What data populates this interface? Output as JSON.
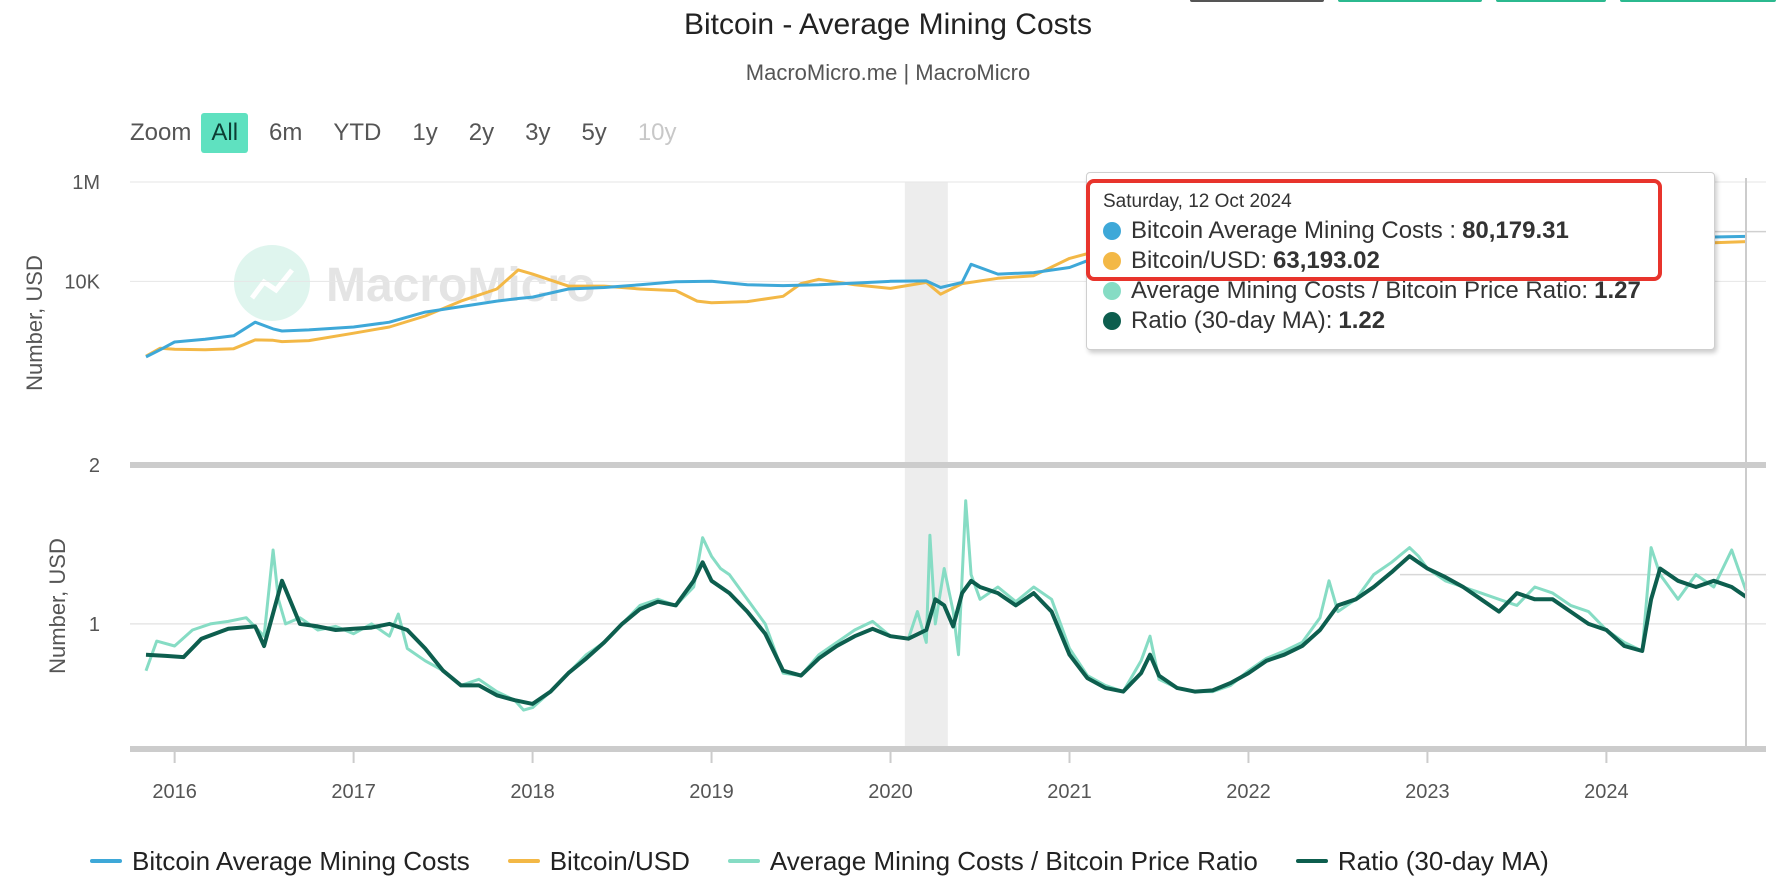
{
  "header": {
    "title": "Bitcoin - Average Mining Costs",
    "subtitle": "MacroMicro.me | MacroMicro"
  },
  "zoom": {
    "label": "Zoom",
    "buttons": [
      "All",
      "6m",
      "YTD",
      "1y",
      "2y",
      "3y",
      "5y",
      "10y"
    ],
    "active": "All",
    "disabled": [
      "10y"
    ]
  },
  "watermark": {
    "text": "MacroMicro"
  },
  "tooltip": {
    "date": "Saturday, 12 Oct 2024",
    "rows": [
      {
        "label": "Bitcoin Average Mining Costs : ",
        "value": "80,179.31"
      },
      {
        "label": "Bitcoin/USD: ",
        "value": "63,193.02"
      },
      {
        "label": "Average Mining Costs / Bitcoin Price Ratio: ",
        "value": "1.27"
      },
      {
        "label": "Ratio (30-day MA): ",
        "value": "1.22"
      }
    ]
  },
  "legend": [
    {
      "label": "Bitcoin Average Mining Costs"
    },
    {
      "label": "Bitcoin/USD"
    },
    {
      "label": "Average Mining Costs / Bitcoin Price Ratio"
    },
    {
      "label": "Ratio (30-day MA)"
    }
  ],
  "colors": {
    "mining_cost": "#3ea8d8",
    "btc_usd": "#f3b846",
    "ratio": "#86dcc4",
    "ratio_ma": "#0d5e4e",
    "shading": "#ededed",
    "header_buttons": [
      "#555555",
      "#2bb98f",
      "#2bb98f",
      "#2bb98f"
    ]
  },
  "chart_data": [
    {
      "type": "line",
      "title": "Bitcoin - Average Mining Costs",
      "ylabel": "Number, USD",
      "yscale": "log",
      "ylim": [
        2,
        1000000
      ],
      "yticks": [
        {
          "value": 2,
          "label": "2"
        },
        {
          "value": 10000,
          "label": "10K"
        },
        {
          "value": 1000000,
          "label": "1M"
        }
      ],
      "xlim": [
        2015.84,
        2024.78
      ],
      "xticks": [
        2016,
        2017,
        2018,
        2019,
        2020,
        2021,
        2022,
        2023,
        2024
      ],
      "shaded_period": [
        2020.08,
        2020.32
      ],
      "series": [
        {
          "name": "Bitcoin Average Mining Costs",
          "x": [
            2015.84,
            2015.92,
            2016.0,
            2016.17,
            2016.33,
            2016.45,
            2016.55,
            2016.6,
            2016.75,
            2017.0,
            2017.2,
            2017.4,
            2017.6,
            2017.8,
            2017.92,
            2018.0,
            2018.2,
            2018.4,
            2018.6,
            2018.8,
            2019.0,
            2019.2,
            2019.4,
            2019.6,
            2019.8,
            2020.0,
            2020.2,
            2020.28,
            2020.4,
            2020.45,
            2020.6,
            2020.8,
            2021.0,
            2021.1,
            2021.3,
            2021.4,
            2021.6,
            2021.8,
            2022.0,
            2022.3,
            2022.5,
            2022.8,
            2023.0,
            2023.2,
            2023.5,
            2023.8,
            2024.0,
            2024.2,
            2024.4,
            2024.6,
            2024.78
          ],
          "y": [
            300,
            420,
            600,
            680,
            800,
            1500,
            1100,
            1000,
            1050,
            1200,
            1500,
            2400,
            3100,
            4000,
            4500,
            4800,
            7000,
            7500,
            8500,
            9800,
            10000,
            8500,
            8200,
            8500,
            9200,
            10000,
            10200,
            7500,
            9500,
            22000,
            14000,
            15000,
            19000,
            26000,
            48000,
            55000,
            45000,
            60000,
            55000,
            35000,
            27000,
            25000,
            28000,
            35000,
            38000,
            50000,
            60000,
            70000,
            75000,
            78000,
            80179
          ]
        },
        {
          "name": "Bitcoin/USD",
          "x": [
            2015.84,
            2015.92,
            2016.0,
            2016.17,
            2016.33,
            2016.45,
            2016.55,
            2016.6,
            2016.75,
            2017.0,
            2017.2,
            2017.4,
            2017.6,
            2017.8,
            2017.92,
            2018.0,
            2018.2,
            2018.4,
            2018.6,
            2018.8,
            2018.92,
            2019.0,
            2019.2,
            2019.4,
            2019.5,
            2019.6,
            2019.8,
            2020.0,
            2020.2,
            2020.28,
            2020.4,
            2020.6,
            2020.8,
            2021.0,
            2021.2,
            2021.3,
            2021.45,
            2021.6,
            2021.85,
            2022.0,
            2022.2,
            2022.45,
            2022.6,
            2022.9,
            2023.0,
            2023.2,
            2023.5,
            2023.8,
            2024.0,
            2024.2,
            2024.4,
            2024.6,
            2024.78
          ],
          "y": [
            310,
            450,
            430,
            420,
            440,
            660,
            650,
            610,
            640,
            900,
            1200,
            2000,
            4000,
            7000,
            17000,
            14000,
            8000,
            8000,
            7000,
            6500,
            4000,
            3700,
            3900,
            5000,
            9000,
            11000,
            8500,
            7200,
            9500,
            5500,
            9000,
            11500,
            13000,
            29000,
            45000,
            60000,
            40000,
            35000,
            60000,
            47000,
            38000,
            20000,
            22000,
            17000,
            17000,
            28000,
            30000,
            35000,
            43000,
            62000,
            66000,
            60000,
            63193
          ]
        }
      ]
    },
    {
      "type": "line",
      "ylabel": "Number, USD",
      "yticks": [
        {
          "value": 1,
          "label": "1"
        }
      ],
      "xlim": [
        2015.84,
        2024.78
      ],
      "ylim": [
        0,
        2.25
      ],
      "series": [
        {
          "name": "Average Mining Costs / Bitcoin Price Ratio",
          "x": [
            2015.84,
            2015.9,
            2016.0,
            2016.1,
            2016.2,
            2016.3,
            2016.4,
            2016.5,
            2016.55,
            2016.58,
            2016.62,
            2016.7,
            2016.8,
            2016.9,
            2017.0,
            2017.1,
            2017.2,
            2017.25,
            2017.3,
            2017.4,
            2017.5,
            2017.6,
            2017.7,
            2017.8,
            2017.9,
            2017.95,
            2018.0,
            2018.1,
            2018.2,
            2018.3,
            2018.4,
            2018.5,
            2018.6,
            2018.7,
            2018.8,
            2018.9,
            2018.95,
            2019.0,
            2019.05,
            2019.1,
            2019.2,
            2019.3,
            2019.4,
            2019.5,
            2019.6,
            2019.7,
            2019.8,
            2019.9,
            2020.0,
            2020.1,
            2020.15,
            2020.2,
            2020.22,
            2020.25,
            2020.3,
            2020.35,
            2020.38,
            2020.42,
            2020.45,
            2020.5,
            2020.6,
            2020.7,
            2020.8,
            2020.9,
            2021.0,
            2021.1,
            2021.2,
            2021.3,
            2021.4,
            2021.45,
            2021.5,
            2021.6,
            2021.7,
            2021.8,
            2021.9,
            2022.0,
            2022.1,
            2022.2,
            2022.3,
            2022.4,
            2022.45,
            2022.5,
            2022.6,
            2022.7,
            2022.8,
            2022.9,
            2022.95,
            2023.0,
            2023.1,
            2023.2,
            2023.3,
            2023.4,
            2023.5,
            2023.6,
            2023.7,
            2023.8,
            2023.9,
            2024.0,
            2024.1,
            2024.2,
            2024.25,
            2024.3,
            2024.4,
            2024.5,
            2024.6,
            2024.7,
            2024.78
          ],
          "y": [
            0.62,
            0.86,
            0.82,
            0.95,
            1.0,
            1.02,
            1.05,
            0.9,
            1.6,
            1.2,
            1.0,
            1.05,
            0.95,
            0.98,
            0.92,
            1.0,
            0.9,
            1.08,
            0.8,
            0.7,
            0.62,
            0.5,
            0.55,
            0.45,
            0.38,
            0.3,
            0.32,
            0.45,
            0.6,
            0.75,
            0.85,
            1.0,
            1.15,
            1.2,
            1.15,
            1.3,
            1.7,
            1.55,
            1.45,
            1.4,
            1.2,
            1.0,
            0.6,
            0.58,
            0.75,
            0.85,
            0.95,
            1.02,
            0.9,
            0.88,
            1.1,
            0.85,
            1.72,
            1.0,
            1.45,
            1.1,
            0.75,
            2.0,
            1.4,
            1.2,
            1.3,
            1.18,
            1.3,
            1.2,
            0.8,
            0.58,
            0.5,
            0.45,
            0.7,
            0.9,
            0.55,
            0.48,
            0.45,
            0.45,
            0.5,
            0.62,
            0.72,
            0.78,
            0.85,
            1.05,
            1.35,
            1.1,
            1.2,
            1.4,
            1.5,
            1.62,
            1.55,
            1.45,
            1.35,
            1.3,
            1.25,
            1.2,
            1.15,
            1.3,
            1.25,
            1.15,
            1.1,
            0.95,
            0.85,
            0.78,
            1.62,
            1.4,
            1.2,
            1.4,
            1.3,
            1.6,
            1.27
          ]
        },
        {
          "name": "Ratio (30-day MA)",
          "x": [
            2015.84,
            2015.95,
            2016.05,
            2016.15,
            2016.3,
            2016.45,
            2016.5,
            2016.6,
            2016.7,
            2016.8,
            2016.9,
            2017.0,
            2017.1,
            2017.2,
            2017.3,
            2017.4,
            2017.5,
            2017.6,
            2017.7,
            2017.8,
            2017.9,
            2018.0,
            2018.1,
            2018.2,
            2018.3,
            2018.4,
            2018.5,
            2018.6,
            2018.7,
            2018.8,
            2018.9,
            2018.95,
            2019.0,
            2019.1,
            2019.2,
            2019.3,
            2019.4,
            2019.5,
            2019.6,
            2019.7,
            2019.8,
            2019.9,
            2020.0,
            2020.1,
            2020.2,
            2020.25,
            2020.3,
            2020.35,
            2020.4,
            2020.45,
            2020.5,
            2020.6,
            2020.7,
            2020.8,
            2020.9,
            2021.0,
            2021.1,
            2021.2,
            2021.3,
            2021.4,
            2021.45,
            2021.5,
            2021.6,
            2021.7,
            2021.8,
            2021.9,
            2022.0,
            2022.1,
            2022.2,
            2022.3,
            2022.4,
            2022.5,
            2022.6,
            2022.7,
            2022.8,
            2022.9,
            2023.0,
            2023.1,
            2023.2,
            2023.3,
            2023.4,
            2023.5,
            2023.6,
            2023.7,
            2023.8,
            2023.9,
            2024.0,
            2024.1,
            2024.2,
            2024.25,
            2024.3,
            2024.4,
            2024.5,
            2024.6,
            2024.7,
            2024.78
          ],
          "y": [
            0.75,
            0.74,
            0.73,
            0.88,
            0.96,
            0.98,
            0.82,
            1.35,
            1.0,
            0.98,
            0.95,
            0.96,
            0.97,
            1.0,
            0.95,
            0.8,
            0.62,
            0.5,
            0.5,
            0.42,
            0.38,
            0.35,
            0.45,
            0.6,
            0.72,
            0.85,
            1.0,
            1.12,
            1.18,
            1.15,
            1.35,
            1.5,
            1.35,
            1.25,
            1.1,
            0.92,
            0.62,
            0.58,
            0.72,
            0.82,
            0.9,
            0.96,
            0.9,
            0.88,
            0.95,
            1.2,
            1.15,
            0.98,
            1.25,
            1.35,
            1.3,
            1.25,
            1.15,
            1.25,
            1.1,
            0.75,
            0.56,
            0.48,
            0.45,
            0.6,
            0.75,
            0.58,
            0.48,
            0.45,
            0.46,
            0.52,
            0.6,
            0.7,
            0.75,
            0.82,
            0.95,
            1.15,
            1.2,
            1.3,
            1.42,
            1.55,
            1.45,
            1.38,
            1.3,
            1.2,
            1.1,
            1.25,
            1.2,
            1.2,
            1.1,
            1.0,
            0.95,
            0.82,
            0.78,
            1.2,
            1.45,
            1.35,
            1.3,
            1.35,
            1.3,
            1.22
          ]
        }
      ]
    }
  ]
}
